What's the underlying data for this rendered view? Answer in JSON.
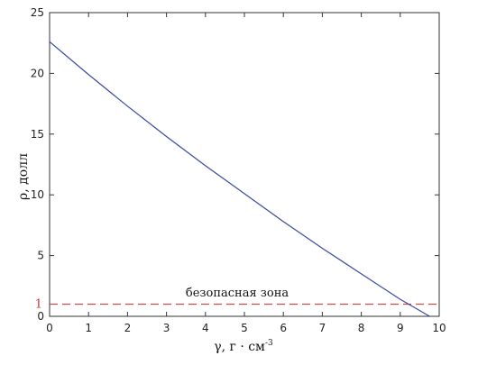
{
  "chart_data": {
    "type": "line",
    "xlabel": "γ, г · см",
    "xlabel_sup": "-3",
    "ylabel": "ρ, долл",
    "xlim": [
      0,
      10
    ],
    "ylim": [
      0,
      25
    ],
    "x_ticks": [
      0,
      1,
      2,
      3,
      4,
      5,
      6,
      7,
      8,
      9,
      10
    ],
    "y_ticks": [
      0,
      5,
      10,
      15,
      20,
      25
    ],
    "grid": false,
    "series": [
      {
        "color": "#3b4aa0",
        "x": [
          0,
          1,
          2,
          3,
          4,
          5,
          6,
          7,
          8,
          9,
          9.7,
          10
        ],
        "y": [
          22.6,
          19.9,
          17.3,
          14.8,
          12.4,
          10.1,
          7.8,
          5.6,
          3.5,
          1.4,
          0.1,
          -0.4
        ]
      }
    ],
    "threshold": {
      "value": 1,
      "label": "1",
      "text": "безопасная зона",
      "color": "#c0504d",
      "style": "dashed"
    }
  }
}
